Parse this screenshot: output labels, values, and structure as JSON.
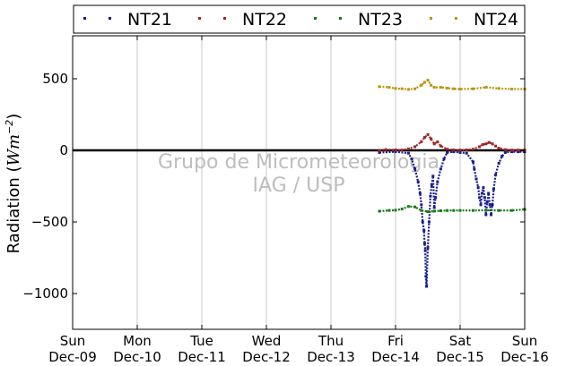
{
  "chart_data": {
    "type": "scatter",
    "ylabel_prefix": "Radiation (",
    "ylabel_unit": "Wm",
    "ylabel_exp": "−2",
    "ylabel_suffix": ")",
    "ylim": [
      -1250,
      800
    ],
    "yticks": [
      500,
      0,
      -500,
      -1000
    ],
    "ytick_labels": [
      "500",
      "0",
      "−500",
      "−1000"
    ],
    "xlim": [
      0,
      7
    ],
    "xticks": [
      {
        "day": "Sun",
        "date": "Dec-09"
      },
      {
        "day": "Mon",
        "date": "Dec-10"
      },
      {
        "day": "Tue",
        "date": "Dec-11"
      },
      {
        "day": "Wed",
        "date": "Dec-12"
      },
      {
        "day": "Thu",
        "date": "Dec-13"
      },
      {
        "day": "Fri",
        "date": "Dec-14"
      },
      {
        "day": "Sat",
        "date": "Dec-15"
      },
      {
        "day": "Sun",
        "date": "Dec-16"
      }
    ],
    "grid": "vertical",
    "legend_placement": "top",
    "watermark": [
      "Grupo de Micrometeorologia",
      "IAG / USP"
    ],
    "series": [
      {
        "name": "NT21",
        "color": "#1c1c8c",
        "x": [
          4.75,
          5.0,
          5.2,
          5.25,
          5.3,
          5.35,
          5.38,
          5.4,
          5.42,
          5.44,
          5.45,
          5.46,
          5.47,
          5.48,
          5.5,
          5.52,
          5.54,
          5.56,
          5.58,
          5.6,
          5.62,
          5.65,
          5.7,
          5.75,
          5.8,
          5.9,
          6.0,
          6.1,
          6.2,
          6.22,
          6.25,
          6.28,
          6.3,
          6.32,
          6.34,
          6.36,
          6.38,
          6.4,
          6.42,
          6.44,
          6.46,
          6.48,
          6.5,
          6.52,
          6.55,
          6.6,
          6.65,
          6.7,
          6.8,
          6.9,
          7.0
        ],
        "y": [
          -15,
          -10,
          -20,
          -60,
          -130,
          -220,
          -300,
          -380,
          -500,
          -560,
          -650,
          -700,
          -880,
          -950,
          -680,
          -500,
          -320,
          -240,
          -180,
          -400,
          -330,
          -220,
          -130,
          -60,
          -15,
          -10,
          -15,
          -20,
          -80,
          -130,
          -200,
          -260,
          -330,
          -380,
          -300,
          -260,
          -330,
          -450,
          -360,
          -300,
          -380,
          -450,
          -380,
          -270,
          -170,
          -90,
          -40,
          -15,
          -10,
          -10,
          -10
        ]
      },
      {
        "name": "NT22",
        "color": "#a02828",
        "x": [
          4.75,
          4.85,
          5.0,
          5.1,
          5.2,
          5.3,
          5.4,
          5.45,
          5.5,
          5.55,
          5.6,
          5.65,
          5.7,
          5.8,
          5.9,
          6.0,
          6.1,
          6.2,
          6.3,
          6.35,
          6.4,
          6.45,
          6.5,
          6.55,
          6.6,
          6.7,
          6.8,
          6.9,
          7.0
        ],
        "y": [
          0,
          5,
          3,
          2,
          10,
          25,
          60,
          90,
          110,
          80,
          45,
          60,
          30,
          8,
          3,
          2,
          3,
          8,
          25,
          40,
          45,
          55,
          45,
          30,
          15,
          5,
          2,
          2,
          2
        ]
      },
      {
        "name": "NT23",
        "color": "#187818",
        "x": [
          4.75,
          4.9,
          5.0,
          5.1,
          5.2,
          5.3,
          5.4,
          5.5,
          5.6,
          5.7,
          5.8,
          5.9,
          6.0,
          6.2,
          6.4,
          6.6,
          6.8,
          7.0
        ],
        "y": [
          -425,
          -420,
          -418,
          -410,
          -392,
          -395,
          -420,
          -428,
          -425,
          -422,
          -420,
          -420,
          -420,
          -420,
          -418,
          -420,
          -420,
          -412
        ]
      },
      {
        "name": "NT24",
        "color": "#b8950c",
        "x": [
          4.75,
          4.9,
          5.0,
          5.1,
          5.2,
          5.3,
          5.4,
          5.45,
          5.5,
          5.55,
          5.6,
          5.7,
          5.8,
          5.9,
          6.0,
          6.2,
          6.4,
          6.6,
          6.8,
          7.0
        ],
        "y": [
          445,
          440,
          432,
          430,
          426,
          430,
          455,
          475,
          490,
          455,
          440,
          440,
          435,
          430,
          428,
          430,
          440,
          432,
          428,
          428
        ]
      }
    ]
  }
}
